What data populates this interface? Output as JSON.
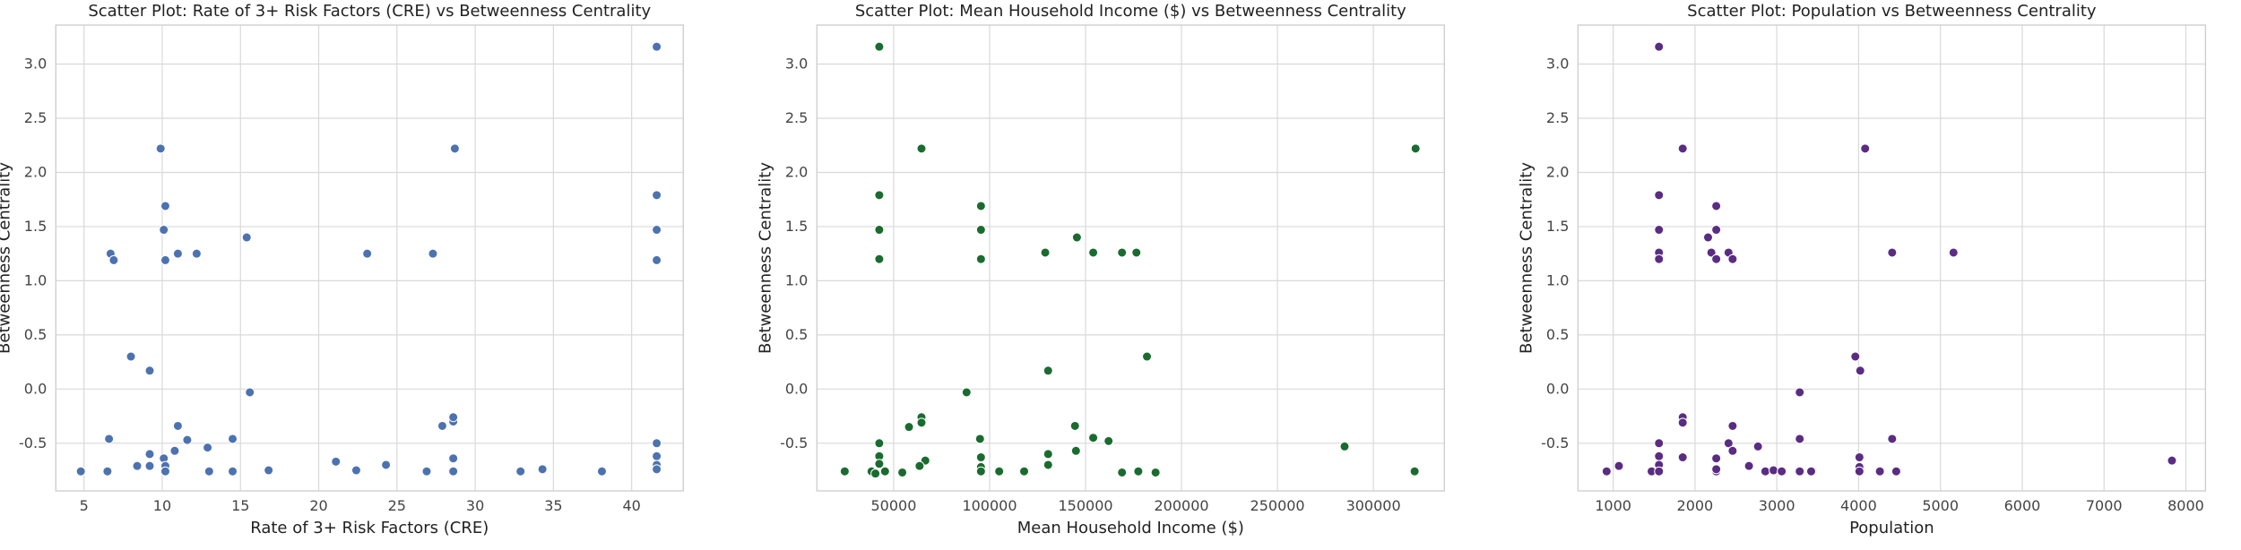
{
  "chart_data": [
    {
      "type": "scatter",
      "title": "Scatter Plot: Rate of 3+ Risk Factors (CRE) vs Betweenness Centrality",
      "xlabel": "Rate of 3+ Risk Factors (CRE)",
      "ylabel": "Betweenness Centrality",
      "xlim": [
        3.2,
        43.3
      ],
      "ylim": [
        -0.94,
        3.36
      ],
      "xticks": [
        5,
        10,
        15,
        20,
        25,
        30,
        35,
        40
      ],
      "yticks": [
        -0.5,
        0.0,
        0.5,
        1.0,
        1.5,
        2.0,
        2.5,
        3.0
      ],
      "grid": true,
      "color": "#4c72b0",
      "points": [
        [
          41.6,
          3.16
        ],
        [
          9.9,
          2.22
        ],
        [
          28.7,
          2.22
        ],
        [
          10.2,
          1.69
        ],
        [
          41.6,
          1.79
        ],
        [
          10.1,
          1.47
        ],
        [
          41.6,
          1.47
        ],
        [
          15.4,
          1.4
        ],
        [
          6.7,
          1.25
        ],
        [
          11.0,
          1.25
        ],
        [
          12.2,
          1.25
        ],
        [
          23.1,
          1.25
        ],
        [
          27.3,
          1.25
        ],
        [
          6.9,
          1.19
        ],
        [
          10.2,
          1.19
        ],
        [
          41.6,
          1.19
        ],
        [
          8.0,
          0.3
        ],
        [
          9.2,
          0.17
        ],
        [
          15.6,
          -0.03
        ],
        [
          11.0,
          -0.34
        ],
        [
          27.9,
          -0.34
        ],
        [
          28.6,
          -0.3
        ],
        [
          28.6,
          -0.26
        ],
        [
          6.6,
          -0.46
        ],
        [
          11.6,
          -0.47
        ],
        [
          14.5,
          -0.46
        ],
        [
          41.6,
          -0.5
        ],
        [
          12.9,
          -0.54
        ],
        [
          10.8,
          -0.57
        ],
        [
          9.2,
          -0.6
        ],
        [
          10.1,
          -0.64
        ],
        [
          28.6,
          -0.64
        ],
        [
          41.6,
          -0.62
        ],
        [
          21.1,
          -0.67
        ],
        [
          24.3,
          -0.7
        ],
        [
          8.4,
          -0.71
        ],
        [
          9.2,
          -0.71
        ],
        [
          10.2,
          -0.71
        ],
        [
          34.3,
          -0.74
        ],
        [
          41.6,
          -0.7
        ],
        [
          4.8,
          -0.76
        ],
        [
          6.5,
          -0.76
        ],
        [
          10.2,
          -0.76
        ],
        [
          13.0,
          -0.76
        ],
        [
          14.5,
          -0.76
        ],
        [
          16.8,
          -0.75
        ],
        [
          22.4,
          -0.75
        ],
        [
          26.9,
          -0.76
        ],
        [
          28.6,
          -0.76
        ],
        [
          32.9,
          -0.76
        ],
        [
          38.1,
          -0.76
        ],
        [
          41.6,
          -0.74
        ]
      ]
    },
    {
      "type": "scatter",
      "title": "Scatter Plot: Mean Household Income ($) vs Betweenness Centrality",
      "xlabel": "Mean Household Income ($)",
      "ylabel": "Betweenness Centrality",
      "xlim": [
        10000,
        337000
      ],
      "ylim": [
        -0.94,
        3.36
      ],
      "xticks": [
        50000,
        100000,
        150000,
        200000,
        250000,
        300000
      ],
      "yticks": [
        -0.5,
        0.0,
        0.5,
        1.0,
        1.5,
        2.0,
        2.5,
        3.0
      ],
      "grid": true,
      "color": "#1a6b2f",
      "points": [
        [
          42500,
          3.16
        ],
        [
          64500,
          2.22
        ],
        [
          322000,
          2.22
        ],
        [
          42500,
          1.79
        ],
        [
          95500,
          1.69
        ],
        [
          42500,
          1.47
        ],
        [
          95500,
          1.47
        ],
        [
          145500,
          1.4
        ],
        [
          129000,
          1.26
        ],
        [
          154000,
          1.26
        ],
        [
          169000,
          1.26
        ],
        [
          176500,
          1.26
        ],
        [
          42500,
          1.2
        ],
        [
          95500,
          1.2
        ],
        [
          182000,
          0.3
        ],
        [
          130500,
          0.17
        ],
        [
          88000,
          -0.03
        ],
        [
          64500,
          -0.26
        ],
        [
          64500,
          -0.31
        ],
        [
          58000,
          -0.35
        ],
        [
          144500,
          -0.34
        ],
        [
          95000,
          -0.46
        ],
        [
          154000,
          -0.45
        ],
        [
          162000,
          -0.48
        ],
        [
          42500,
          -0.5
        ],
        [
          285000,
          -0.53
        ],
        [
          145000,
          -0.57
        ],
        [
          42500,
          -0.62
        ],
        [
          95500,
          -0.63
        ],
        [
          130500,
          -0.6
        ],
        [
          66500,
          -0.66
        ],
        [
          63500,
          -0.71
        ],
        [
          42500,
          -0.69
        ],
        [
          130500,
          -0.7
        ],
        [
          95500,
          -0.72
        ],
        [
          24500,
          -0.76
        ],
        [
          38500,
          -0.76
        ],
        [
          40500,
          -0.78
        ],
        [
          45500,
          -0.76
        ],
        [
          54500,
          -0.77
        ],
        [
          95500,
          -0.76
        ],
        [
          105000,
          -0.76
        ],
        [
          118000,
          -0.76
        ],
        [
          169000,
          -0.77
        ],
        [
          177500,
          -0.76
        ],
        [
          186500,
          -0.77
        ],
        [
          321500,
          -0.76
        ]
      ]
    },
    {
      "type": "scatter",
      "title": "Scatter Plot: Population vs Betweenness Centrality",
      "xlabel": "Population",
      "ylabel": "Betweenness Centrality",
      "xlim": [
        570,
        8240
      ],
      "ylim": [
        -0.94,
        3.36
      ],
      "xticks": [
        1000,
        2000,
        3000,
        4000,
        5000,
        6000,
        7000,
        8000
      ],
      "yticks": [
        -0.5,
        0.0,
        0.5,
        1.0,
        1.5,
        2.0,
        2.5,
        3.0
      ],
      "grid": true,
      "color": "#5b2c83",
      "points": [
        [
          1560,
          3.16
        ],
        [
          1850,
          2.22
        ],
        [
          4080,
          2.22
        ],
        [
          1560,
          1.79
        ],
        [
          2260,
          1.69
        ],
        [
          1560,
          1.47
        ],
        [
          2260,
          1.47
        ],
        [
          2160,
          1.4
        ],
        [
          1560,
          1.26
        ],
        [
          2200,
          1.26
        ],
        [
          2410,
          1.26
        ],
        [
          4410,
          1.26
        ],
        [
          5160,
          1.26
        ],
        [
          1560,
          1.2
        ],
        [
          2260,
          1.2
        ],
        [
          2460,
          1.2
        ],
        [
          3960,
          0.3
        ],
        [
          4020,
          0.17
        ],
        [
          3280,
          -0.03
        ],
        [
          1850,
          -0.26
        ],
        [
          1850,
          -0.31
        ],
        [
          2460,
          -0.34
        ],
        [
          3280,
          -0.46
        ],
        [
          4410,
          -0.46
        ],
        [
          2410,
          -0.5
        ],
        [
          1560,
          -0.5
        ],
        [
          2770,
          -0.53
        ],
        [
          2460,
          -0.57
        ],
        [
          1560,
          -0.62
        ],
        [
          1850,
          -0.63
        ],
        [
          2260,
          -0.64
        ],
        [
          4010,
          -0.63
        ],
        [
          7830,
          -0.66
        ],
        [
          1070,
          -0.71
        ],
        [
          1560,
          -0.7
        ],
        [
          2660,
          -0.71
        ],
        [
          4010,
          -0.72
        ],
        [
          920,
          -0.76
        ],
        [
          1470,
          -0.76
        ],
        [
          1560,
          -0.76
        ],
        [
          2260,
          -0.76
        ],
        [
          2260,
          -0.74
        ],
        [
          2860,
          -0.76
        ],
        [
          2960,
          -0.75
        ],
        [
          3060,
          -0.76
        ],
        [
          3280,
          -0.76
        ],
        [
          3420,
          -0.76
        ],
        [
          4010,
          -0.76
        ],
        [
          4260,
          -0.76
        ],
        [
          4460,
          -0.76
        ]
      ]
    }
  ]
}
